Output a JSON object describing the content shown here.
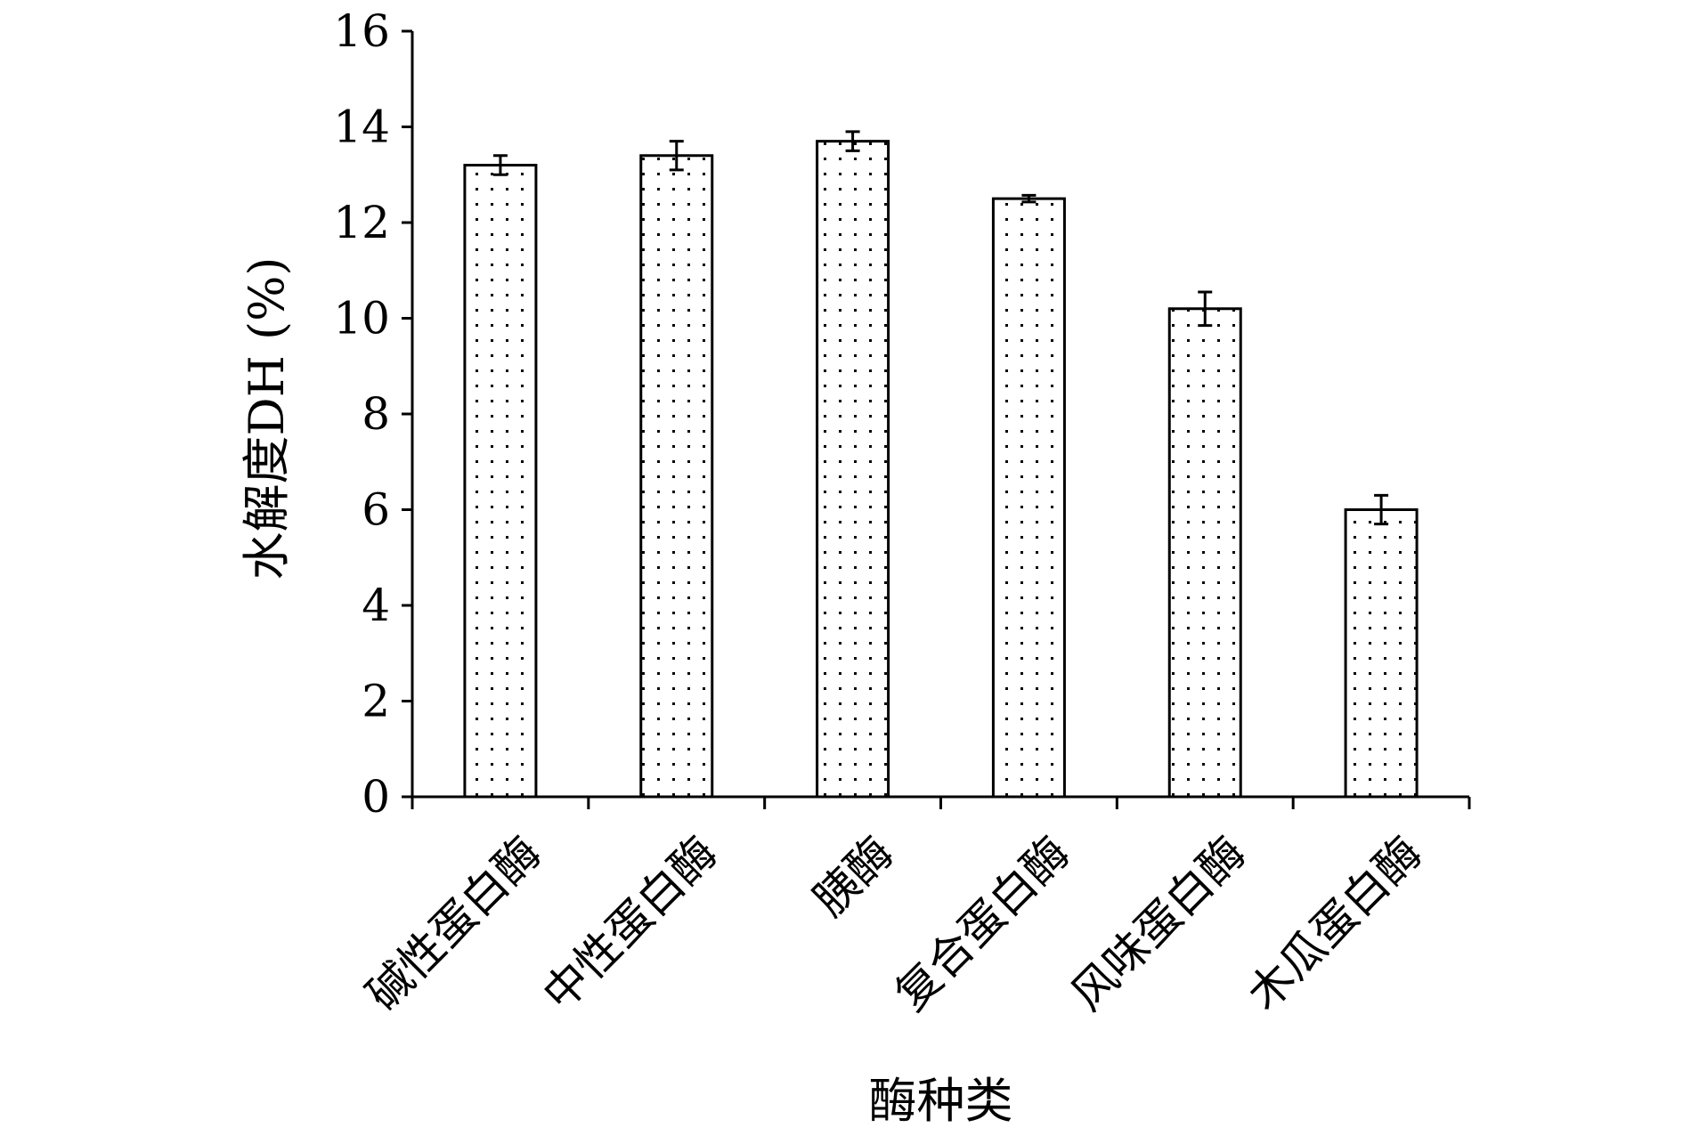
{
  "chart_data": {
    "type": "bar",
    "title": "",
    "xlabel": "酶种类",
    "ylabel": "水解度DH (%)",
    "categories": [
      "碱性蛋白酶",
      "中性蛋白酶",
      "胰酶",
      "复合蛋白酶",
      "风味蛋白酶",
      "木瓜蛋白酶"
    ],
    "values": [
      13.2,
      13.4,
      13.7,
      12.5,
      10.2,
      6.0
    ],
    "errors": [
      0.2,
      0.3,
      0.2,
      0.07,
      0.35,
      0.3
    ],
    "yticks": [
      "0",
      "2",
      "4",
      "6",
      "8",
      "10",
      "12",
      "14",
      "16"
    ],
    "ylim": [
      0,
      16
    ],
    "grid": false,
    "legend": "none",
    "bar_pattern": "dotted",
    "colors": {
      "axis": "#000000",
      "bar_stroke": "#000000",
      "bar_fill": "#ffffff",
      "dot": "#000000"
    }
  }
}
